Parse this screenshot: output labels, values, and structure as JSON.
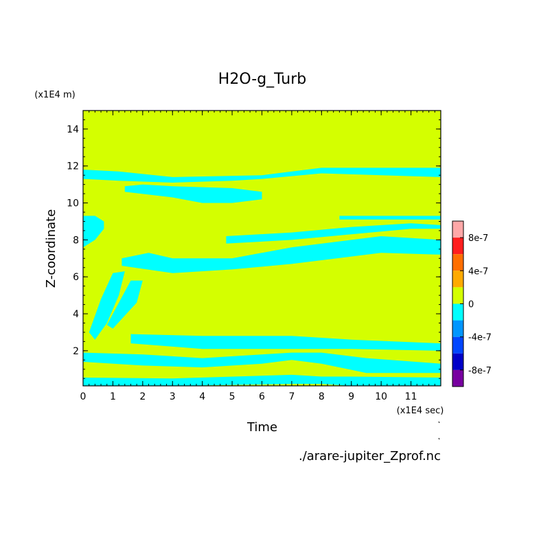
{
  "chart_data": {
    "type": "heatmap",
    "title": "H2O-g_Turb",
    "xlabel": "Time",
    "ylabel": "Z-coordinate",
    "x_unit": "(x1E4 sec)",
    "y_unit": "(x1E4 m)",
    "xlim": [
      0,
      12
    ],
    "ylim": [
      0.1,
      15
    ],
    "x_ticks": [
      0,
      1,
      2,
      3,
      4,
      5,
      6,
      7,
      8,
      9,
      10,
      11
    ],
    "y_ticks": [
      2,
      4,
      6,
      8,
      10,
      12,
      14
    ],
    "background_level": "0",
    "source": "./arare-jupiter_Zprof.nc",
    "colorbar": {
      "labels": [
        {
          "text": "8e-7",
          "value": 8e-07
        },
        {
          "text": "4e-7",
          "value": 4e-07
        },
        {
          "text": "0",
          "value": 0
        },
        {
          "text": "-4e-7",
          "value": -4e-07
        },
        {
          "text": "-8e-7",
          "value": -8e-07
        }
      ],
      "levels": [
        {
          "min": 8e-07,
          "max": 1e-06,
          "color": "#ffa8a8"
        },
        {
          "min": 6e-07,
          "max": 8e-07,
          "color": "#ff1e1e"
        },
        {
          "min": 4e-07,
          "max": 6e-07,
          "color": "#ff6e00"
        },
        {
          "min": 2e-07,
          "max": 4e-07,
          "color": "#ffaa00"
        },
        {
          "min": 0,
          "max": 2e-07,
          "color": "#d4ff00"
        },
        {
          "min": -2e-07,
          "max": 0,
          "color": "#00ffff"
        },
        {
          "min": -4e-07,
          "max": -2e-07,
          "color": "#0096ff"
        },
        {
          "min": -6e-07,
          "max": -4e-07,
          "color": "#0046ff"
        },
        {
          "min": -8e-07,
          "max": -6e-07,
          "color": "#0000c8"
        },
        {
          "min": -1e-06,
          "max": -8e-07,
          "color": "#7800a0"
        }
      ]
    },
    "negative_bands": [
      {
        "color": "#00ffff",
        "points": [
          [
            0,
            11.3
          ],
          [
            1.2,
            11.2
          ],
          [
            3,
            11.1
          ],
          [
            5,
            11.2
          ],
          [
            6,
            11.3
          ],
          [
            8,
            11.6
          ],
          [
            10,
            11.5
          ],
          [
            12,
            11.4
          ],
          [
            12,
            11.9
          ],
          [
            10,
            11.9
          ],
          [
            8,
            11.9
          ],
          [
            6,
            11.5
          ],
          [
            3,
            11.4
          ],
          [
            1.2,
            11.7
          ],
          [
            0,
            11.8
          ]
        ]
      },
      {
        "color": "#00ffff",
        "points": [
          [
            1.4,
            10.6
          ],
          [
            3,
            10.3
          ],
          [
            4,
            10.0
          ],
          [
            5,
            10.0
          ],
          [
            6,
            10.2
          ],
          [
            6,
            10.6
          ],
          [
            5,
            10.8
          ],
          [
            3,
            10.9
          ],
          [
            2,
            11.0
          ],
          [
            1.4,
            10.9
          ]
        ]
      },
      {
        "color": "#00ffff",
        "points": [
          [
            8.6,
            9.1
          ],
          [
            12,
            9.1
          ],
          [
            12,
            9.3
          ],
          [
            8.6,
            9.3
          ]
        ]
      },
      {
        "color": "#00ffff",
        "points": [
          [
            0,
            7.6
          ],
          [
            0.4,
            8.0
          ],
          [
            0.7,
            8.6
          ],
          [
            0.7,
            9.0
          ],
          [
            0.4,
            9.3
          ],
          [
            0,
            9.3
          ]
        ]
      },
      {
        "color": "#00ffff",
        "points": [
          [
            1.3,
            6.6
          ],
          [
            3,
            6.2
          ],
          [
            5,
            6.4
          ],
          [
            7,
            6.7
          ],
          [
            9,
            7.1
          ],
          [
            10,
            7.3
          ],
          [
            12,
            7.2
          ],
          [
            12,
            8.0
          ],
          [
            10,
            8.2
          ],
          [
            9,
            8.0
          ],
          [
            7,
            7.6
          ],
          [
            5,
            7.0
          ],
          [
            3,
            7.0
          ],
          [
            2.2,
            7.3
          ],
          [
            1.3,
            7.0
          ]
        ]
      },
      {
        "color": "#00ffff",
        "points": [
          [
            4.8,
            7.8
          ],
          [
            7,
            8.0
          ],
          [
            9,
            8.3
          ],
          [
            11,
            8.6
          ],
          [
            12,
            8.6
          ],
          [
            12,
            8.8
          ],
          [
            11,
            8.9
          ],
          [
            9,
            8.7
          ],
          [
            7,
            8.4
          ],
          [
            4.8,
            8.2
          ]
        ]
      },
      {
        "color": "#00ffff",
        "points": [
          [
            0.2,
            3.0
          ],
          [
            0.6,
            4.8
          ],
          [
            1.0,
            6.2
          ],
          [
            1.4,
            6.3
          ],
          [
            1.2,
            5.0
          ],
          [
            0.8,
            3.5
          ],
          [
            0.4,
            2.6
          ]
        ]
      },
      {
        "color": "#00ffff",
        "points": [
          [
            1.0,
            3.2
          ],
          [
            1.8,
            4.6
          ],
          [
            2.0,
            5.8
          ],
          [
            1.6,
            5.8
          ],
          [
            1.2,
            4.6
          ],
          [
            0.8,
            3.4
          ]
        ]
      },
      {
        "color": "#00ffff",
        "points": [
          [
            1.6,
            2.4
          ],
          [
            4,
            2.1
          ],
          [
            7,
            2.1
          ],
          [
            9,
            2.1
          ],
          [
            12,
            2.0
          ],
          [
            12,
            2.4
          ],
          [
            9,
            2.6
          ],
          [
            7,
            2.8
          ],
          [
            4,
            2.8
          ],
          [
            1.6,
            2.9
          ]
        ]
      },
      {
        "color": "#00ffff",
        "points": [
          [
            0,
            1.4
          ],
          [
            2,
            1.2
          ],
          [
            4,
            1.1
          ],
          [
            6,
            1.3
          ],
          [
            7,
            1.5
          ],
          [
            8,
            1.3
          ],
          [
            9.5,
            0.8
          ],
          [
            12,
            0.8
          ],
          [
            12,
            1.3
          ],
          [
            9.5,
            1.6
          ],
          [
            8,
            1.9
          ],
          [
            7,
            1.9
          ],
          [
            6,
            1.8
          ],
          [
            4,
            1.6
          ],
          [
            2,
            1.8
          ],
          [
            0,
            1.9
          ]
        ]
      },
      {
        "color": "#00ffff",
        "points": [
          [
            0,
            0.1
          ],
          [
            3,
            0.1
          ],
          [
            7,
            0.2
          ],
          [
            8,
            0.2
          ],
          [
            9,
            0.1
          ],
          [
            12,
            0.1
          ],
          [
            12,
            0.55
          ],
          [
            9,
            0.6
          ],
          [
            8,
            0.6
          ],
          [
            7,
            0.7
          ],
          [
            3,
            0.5
          ],
          [
            0,
            0.55
          ]
        ]
      }
    ]
  }
}
